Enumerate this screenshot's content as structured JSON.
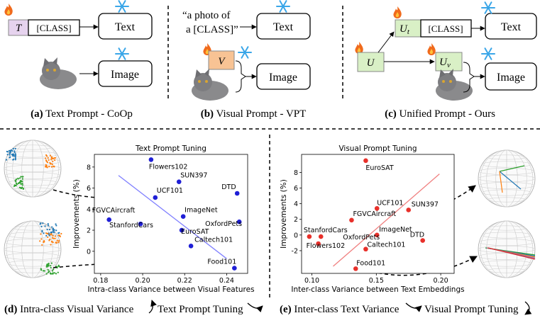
{
  "diagram": {
    "panels": [
      {
        "label": "(a)",
        "caption": "Text Prompt - CoOp",
        "prompt": "T",
        "class_token": "[CLASS]",
        "text_encoder": "Text",
        "image_encoder": "Image"
      },
      {
        "label": "(b)",
        "caption": "Visual Prompt - VPT",
        "template_line1": "“a photo of",
        "template_line2": "a [CLASS]”",
        "prompt": "V",
        "text_encoder": "Text",
        "image_encoder": "Image"
      },
      {
        "label": "(c)",
        "caption": "Unified Prompt - Ours",
        "prompt": "U",
        "text_prompt": {
          "base": "U",
          "sub": "t"
        },
        "visual_prompt": {
          "base": "U",
          "sub": "v"
        },
        "class_token": "[CLASS]",
        "text_encoder": "Text",
        "image_encoder": "Image"
      }
    ]
  },
  "bottom_captions": [
    {
      "label": "(d)",
      "text": "Intra-class Visual Variance",
      "secondary": "Text Prompt Tuning"
    },
    {
      "label": "(e)",
      "text": "Inter-class Text Variance",
      "secondary": "Visual Prompt Tuning"
    }
  ],
  "chart_data": [
    {
      "type": "scatter",
      "title": "Text Prompt Tuning",
      "xlabel": "Intra-class Variance between Visual Features",
      "ylabel": "Improvements (%)",
      "point_labels": [
        "Flowers102",
        "SUN397",
        "UCF101",
        "DTD",
        "ImageNet",
        "OxfordPets",
        "FGVCAircraft",
        "StanfordCars",
        "EuroSAT",
        "Caltech101",
        "Food101"
      ],
      "x": [
        0.204,
        0.2173,
        0.206,
        0.245,
        0.2193,
        0.246,
        0.184,
        0.199,
        0.2186,
        0.223,
        0.2437
      ],
      "y": [
        8.7,
        6.6,
        5.1,
        5.5,
        3.3,
        2.8,
        3.0,
        2.6,
        2.0,
        0.5,
        -1.6
      ],
      "color": "#1f1fd6",
      "trend_line": {
        "x": [
          0.1885,
          0.24
        ],
        "y": [
          7.2,
          -0.7
        ],
        "color": "#8080ff"
      },
      "xlim": [
        0.177,
        0.25
      ],
      "xticks": [
        0.18,
        {
          "value": 0.2,
          "label": "0.20"
        },
        0.22,
        0.24
      ],
      "ylim": [
        -2.1,
        9.2
      ],
      "yticks": [
        0,
        2,
        4,
        6,
        8
      ]
    },
    {
      "type": "scatter",
      "title": "Visual Prompt Tuning",
      "xlabel": "Inter-class Variance between Text Embeddings",
      "ylabel": "Improvements (%)",
      "point_labels": [
        "EuroSAT",
        "SUN397",
        "UCF101",
        "FGVCAircraft",
        "ImageNet",
        "StanfordCars",
        "DTD",
        "OxfordPets",
        "Flowers102",
        "Caltech101",
        "Food101"
      ],
      "x": [
        0.1418,
        0.175,
        0.1505,
        0.1308,
        0.1505,
        0.098,
        0.186,
        0.107,
        0.105,
        0.1418,
        0.134
      ],
      "y": [
        9.5,
        3.2,
        3.4,
        1.9,
        0,
        -0.2,
        -0.7,
        -0.2,
        -1.1,
        -1.8,
        -4.3
      ],
      "color": "#e8302a",
      "trend_line": {
        "x": [
          0.1165,
          0.199
        ],
        "y": [
          -4.0,
          7.8
        ],
        "color": "#f08080"
      },
      "xlim": [
        0.092,
        0.2104
      ],
      "xticks": [
        {
          "value": 0.1,
          "label": "0.10"
        },
        0.15,
        {
          "value": 0.2,
          "label": "0.20"
        }
      ],
      "ylim": [
        -4.9,
        10.3
      ],
      "yticks": [
        -2,
        0,
        2,
        4,
        6,
        8
      ]
    }
  ]
}
